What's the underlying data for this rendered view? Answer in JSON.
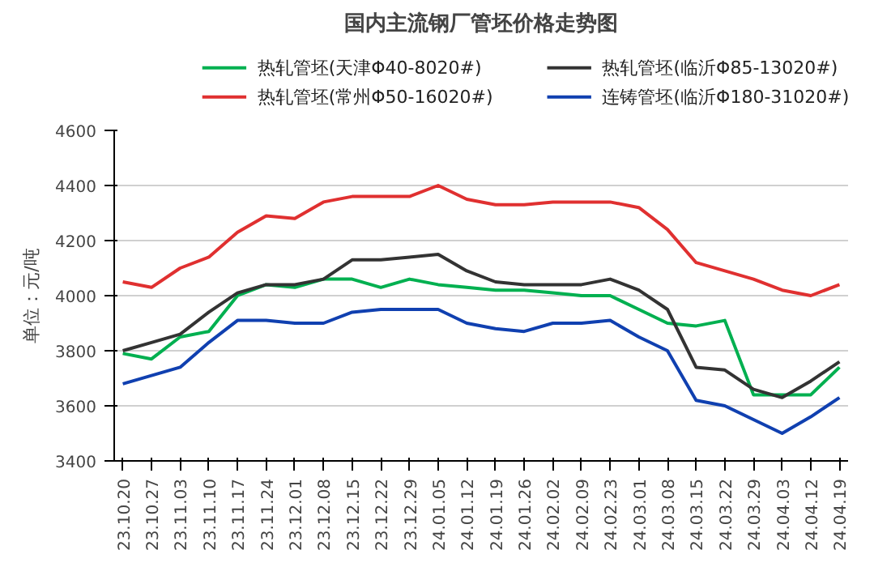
{
  "chart_data": {
    "type": "line",
    "title": "国内主流钢厂管坯价格走势图",
    "ylabel": "单位：元/吨",
    "categories": [
      "23.10.20",
      "23.10.27",
      "23.11.03",
      "23.11.10",
      "23.11.17",
      "23.11.24",
      "23.12.01",
      "23.12.08",
      "23.12.15",
      "23.12.22",
      "23.12.29",
      "24.01.05",
      "24.01.12",
      "24.01.19",
      "24.01.26",
      "24.02.02",
      "24.02.09",
      "24.02.23",
      "24.03.01",
      "24.03.08",
      "24.03.15",
      "24.03.22",
      "24.03.29",
      "24.04.03",
      "24.04.12",
      "24.04.19"
    ],
    "series": [
      {
        "name": "热轧管坯(天津Φ40-8020#)",
        "color": "#00b050",
        "values": [
          3790,
          3770,
          3850,
          3870,
          4000,
          4040,
          4030,
          4060,
          4060,
          4030,
          4060,
          4040,
          4030,
          4020,
          4020,
          4010,
          4000,
          4000,
          3950,
          3900,
          3890,
          3910,
          3640,
          3640,
          3640,
          3740
        ]
      },
      {
        "name": "热轧管坯(常州Φ50-16020#)",
        "color": "#e03030",
        "values": [
          4050,
          4030,
          4100,
          4140,
          4230,
          4290,
          4280,
          4340,
          4360,
          4360,
          4360,
          4400,
          4350,
          4330,
          4330,
          4340,
          4340,
          4340,
          4320,
          4240,
          4120,
          4090,
          4060,
          4020,
          4000,
          4040
        ]
      },
      {
        "name": "热轧管坯(临沂Φ85-13020#)",
        "color": "#333333",
        "values": [
          3800,
          3830,
          3860,
          3940,
          4010,
          4040,
          4040,
          4060,
          4130,
          4130,
          4140,
          4150,
          4090,
          4050,
          4040,
          4040,
          4040,
          4060,
          4020,
          3950,
          3740,
          3730,
          3660,
          3630,
          3690,
          3760
        ]
      },
      {
        "name": "连铸管坯(临沂Φ180-31020#)",
        "color": "#1040b0",
        "values": [
          3680,
          3710,
          3740,
          3830,
          3910,
          3910,
          3900,
          3900,
          3940,
          3950,
          3950,
          3950,
          3900,
          3880,
          3870,
          3900,
          3900,
          3910,
          3850,
          3800,
          3620,
          3600,
          3550,
          3500,
          3560,
          3630
        ]
      }
    ],
    "ylim": [
      3400,
      4600
    ],
    "yticks": [
      3400,
      3600,
      3800,
      4000,
      4200,
      4400,
      4600
    ],
    "grid": "y",
    "legend": "top"
  }
}
